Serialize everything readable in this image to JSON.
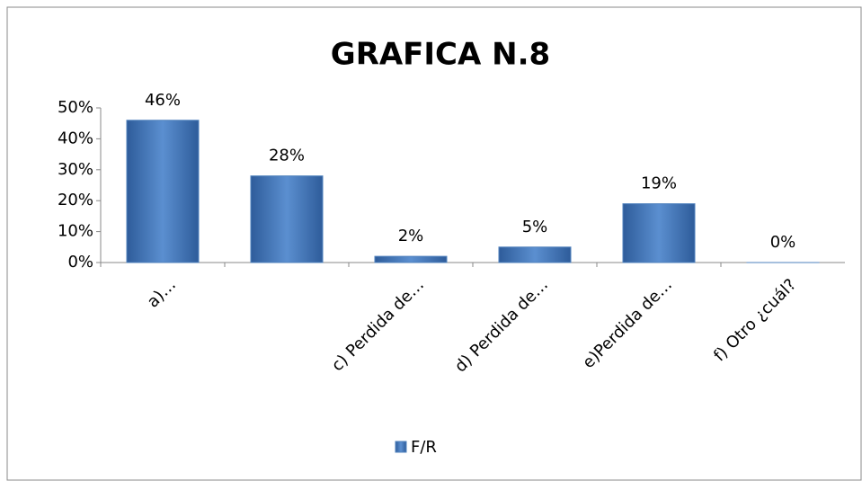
{
  "chart_data": {
    "type": "bar",
    "title": "GRAFICA N.8",
    "categories": [
      "a)…",
      null,
      "c) Perdida de…",
      "d) Perdida de…",
      "e)Perdida de…",
      "f) Otro ¿cuál?"
    ],
    "series": [
      {
        "name": "F/R",
        "color": "#4f81bd",
        "values": [
          46,
          28,
          2,
          5,
          19,
          0
        ],
        "value_labels": [
          "46%",
          "28%",
          "2%",
          "5%",
          "19%",
          "0%"
        ]
      }
    ],
    "ylim": [
      0,
      50
    ],
    "yticks": [
      {
        "value": 0,
        "label": "0%"
      },
      {
        "value": 10,
        "label": "10%"
      },
      {
        "value": 20,
        "label": "20%"
      },
      {
        "value": 30,
        "label": "30%"
      },
      {
        "value": 40,
        "label": "40%"
      },
      {
        "value": 50,
        "label": "50%"
      }
    ],
    "legend": "bottom"
  }
}
